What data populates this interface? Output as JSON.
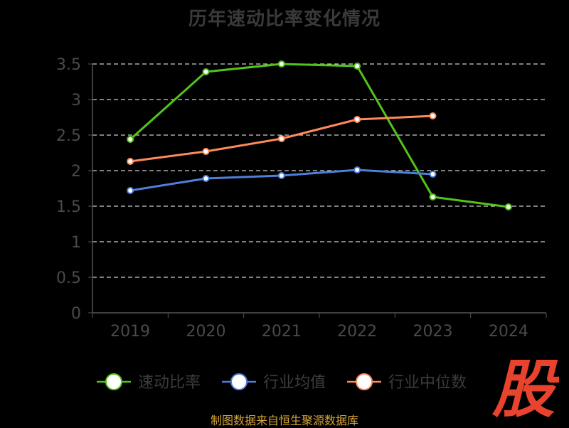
{
  "title": "历年速动比率变化情况",
  "source": "制图数据来自恒生聚源数据库",
  "logo_text": "股",
  "colors": {
    "background": "#000000",
    "title": "#3a3a3a",
    "axis": "#555555",
    "tick_label": "#4a4a4a",
    "grid": "#ffffff",
    "legend_text": "#3c3c3c",
    "source": "#d4a437",
    "logo": "#e8432e"
  },
  "chart_data": {
    "type": "line",
    "title": "历年速动比率变化情况",
    "xlabel": "",
    "ylabel": "",
    "categories": [
      "2019",
      "2020",
      "2021",
      "2022",
      "2023",
      "2024"
    ],
    "ylim": [
      0,
      3.5
    ],
    "yticks": [
      "0",
      "0.5",
      "1",
      "1.5",
      "2",
      "2.5",
      "3",
      "3.5"
    ],
    "grid": true,
    "legend_position": "bottom",
    "series": [
      {
        "name": "速动比率",
        "color": "#52c41a",
        "values": [
          2.44,
          3.39,
          3.5,
          3.47,
          1.63,
          1.49
        ]
      },
      {
        "name": "行业均值",
        "color": "#4f7fdc",
        "values": [
          1.72,
          1.89,
          1.93,
          2.01,
          1.95,
          null
        ]
      },
      {
        "name": "行业中位数",
        "color": "#ff8a5c",
        "values": [
          2.13,
          2.27,
          2.45,
          2.72,
          2.77,
          null
        ]
      }
    ]
  }
}
